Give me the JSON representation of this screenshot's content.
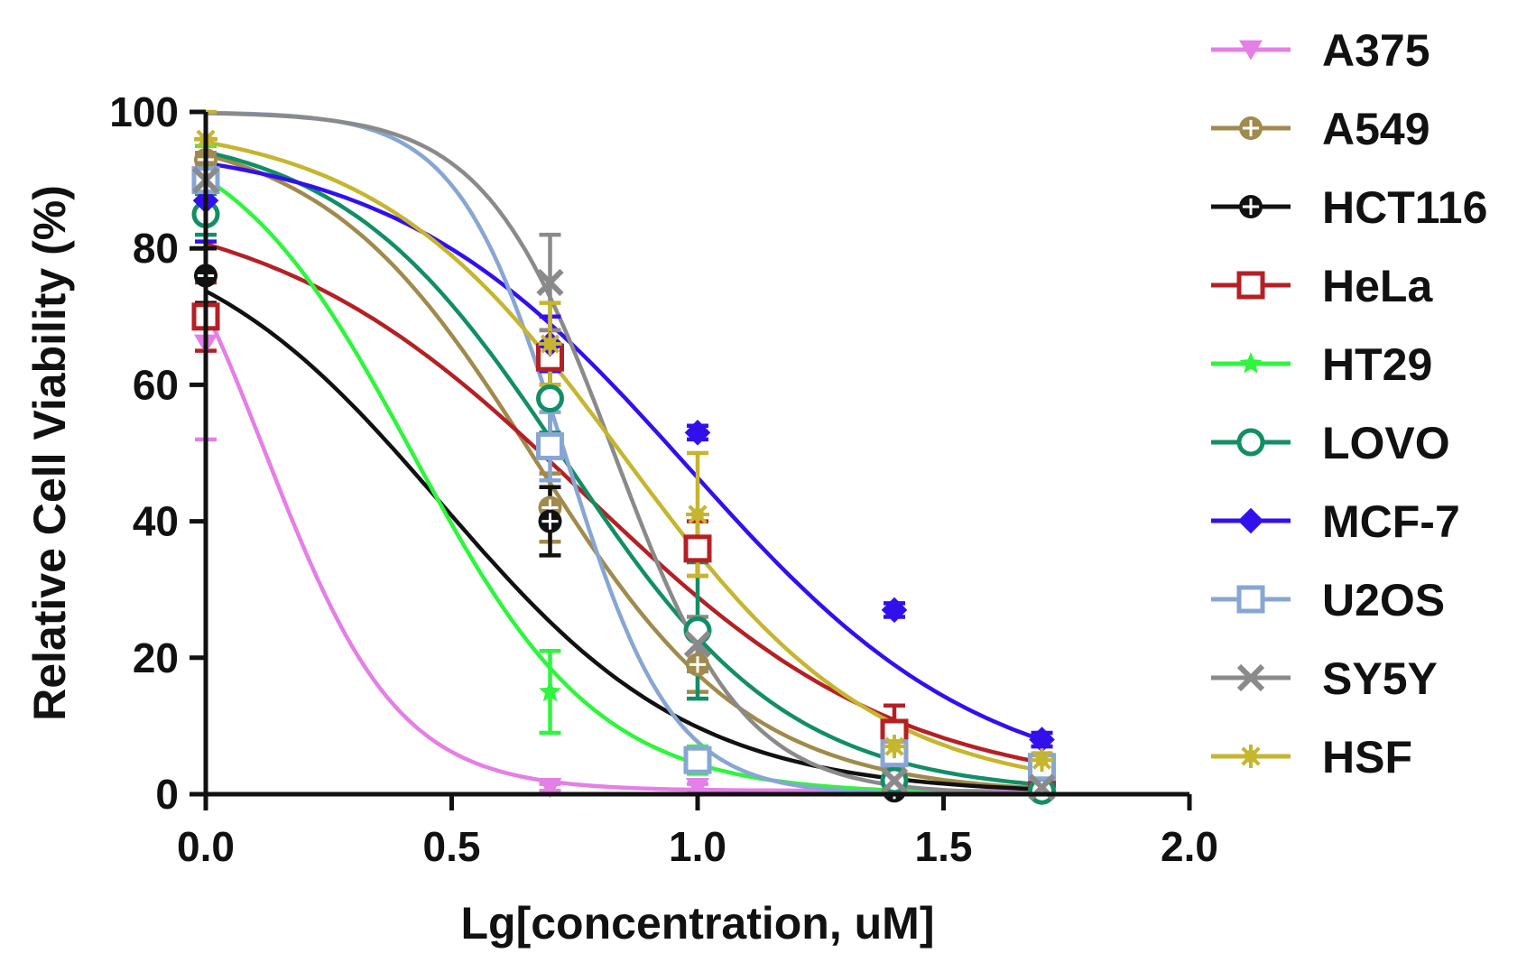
{
  "chart_data": {
    "type": "scatter",
    "title": "",
    "xlabel": "Lg[concentration, uM]",
    "ylabel": "Relative Cell Viability (%)",
    "xlim": [
      0,
      2.0
    ],
    "ylim": [
      0,
      100
    ],
    "xticks": [
      "0.0",
      "0.5",
      "1.0",
      "1.5",
      "2.0"
    ],
    "yticks": [
      "0",
      "20",
      "40",
      "60",
      "80",
      "100"
    ],
    "legend_position": "right",
    "x": [
      0.0,
      0.7,
      1.0,
      1.4,
      1.7
    ],
    "series": [
      {
        "name": "A375",
        "color": "#e47fe6",
        "marker": "triangle-down",
        "values": [
          66,
          1,
          1,
          0.5,
          0.5
        ],
        "errors": [
          14,
          0.5,
          0.5,
          0.3,
          0.3
        ],
        "fit": {
          "top": 100,
          "bottom": 0.5,
          "ec50_log": 0.12,
          "hill": 3.2
        }
      },
      {
        "name": "A549",
        "color": "#a08a4c",
        "marker": "circle-cross",
        "values": [
          93,
          42,
          19,
          3,
          1
        ],
        "errors": [
          3,
          5,
          4,
          1,
          1
        ],
        "fit": {
          "top": 98,
          "bottom": 0,
          "ec50_log": 0.67,
          "hill": 2.0
        }
      },
      {
        "name": "HCT116",
        "color": "#111111",
        "marker": "circle-cross",
        "values": [
          76,
          40,
          5,
          0.5,
          0.5
        ],
        "errors": [
          4,
          5,
          1,
          0.5,
          0.5
        ],
        "fit": {
          "top": 85,
          "bottom": 0,
          "ec50_log": 0.48,
          "hill": 1.7
        }
      },
      {
        "name": "HeLa",
        "color": "#b52025",
        "marker": "square-open",
        "values": [
          70,
          64,
          36,
          9,
          3
        ],
        "errors": [
          5,
          4,
          4,
          4,
          1
        ],
        "fit": {
          "top": 88,
          "bottom": 0,
          "ec50_log": 0.77,
          "hill": 1.35
        }
      },
      {
        "name": "HT29",
        "color": "#2ef53d",
        "marker": "star",
        "values": [
          91,
          15,
          5,
          1,
          0.5
        ],
        "errors": [
          4,
          6,
          2,
          0.5,
          0.5
        ],
        "fit": {
          "top": 100,
          "bottom": 0,
          "ec50_log": 0.42,
          "hill": 2.3
        }
      },
      {
        "name": "LOVO",
        "color": "#128e66",
        "marker": "circle-open",
        "values": [
          85,
          58,
          24,
          2,
          0.5
        ],
        "errors": [
          3,
          5,
          10,
          1,
          0.5
        ],
        "fit": {
          "top": 98,
          "bottom": 0,
          "ec50_log": 0.73,
          "hill": 1.9
        }
      },
      {
        "name": "MCF-7",
        "color": "#3210ee",
        "marker": "diamond",
        "values": [
          87,
          66,
          53,
          27,
          8
        ],
        "errors": [
          6,
          4,
          1,
          1,
          1
        ],
        "fit": {
          "top": 96,
          "bottom": 0,
          "ec50_log": 0.98,
          "hill": 1.45
        }
      },
      {
        "name": "U2OS",
        "color": "#87a6d3",
        "marker": "square-open",
        "values": [
          90,
          51,
          5,
          6,
          4
        ],
        "errors": [
          4,
          5,
          1,
          1,
          1
        ],
        "fit": {
          "top": 100,
          "bottom": 0,
          "ec50_log": 0.73,
          "hill": 4.0
        }
      },
      {
        "name": "SY5Y",
        "color": "#8a8a8a",
        "marker": "x",
        "values": [
          90,
          75,
          22,
          2,
          1
        ],
        "errors": [
          4,
          7,
          4,
          1,
          1
        ],
        "fit": {
          "top": 100,
          "bottom": 0,
          "ec50_log": 0.83,
          "hill": 3.3
        }
      },
      {
        "name": "HSF",
        "color": "#c6b52e",
        "marker": "asterisk",
        "values": [
          96,
          66,
          41,
          7,
          5
        ],
        "errors": [
          4,
          6,
          9,
          2,
          1
        ],
        "fit": {
          "top": 99,
          "bottom": 0,
          "ec50_log": 0.85,
          "hill": 1.7
        }
      }
    ]
  }
}
